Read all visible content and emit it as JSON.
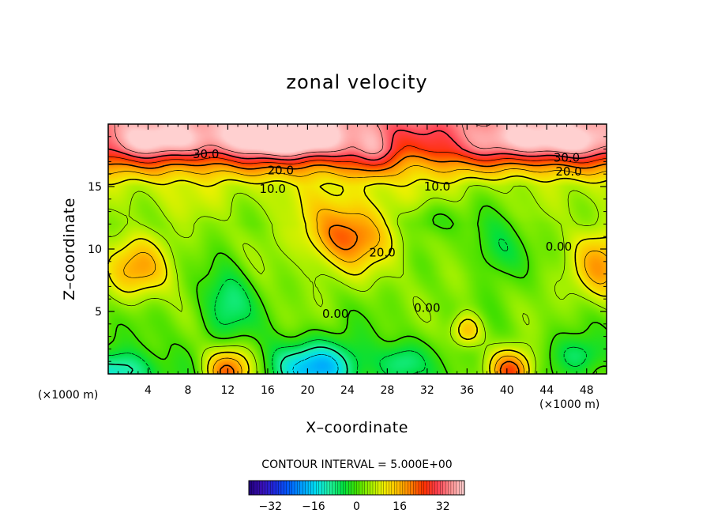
{
  "chart_data": {
    "type": "heatmap",
    "title": "zonal velocity",
    "xlabel": "X–coordinate",
    "ylabel": "Z–coordinate",
    "x_unit": "(×1000 m)",
    "y_unit": "(×1000 m)",
    "xlim": [
      0,
      50
    ],
    "ylim": [
      0,
      20
    ],
    "x_ticks": [
      "4",
      "8",
      "12",
      "16",
      "20",
      "24",
      "28",
      "32",
      "36",
      "40",
      "44",
      "48"
    ],
    "y_ticks": [
      "5",
      "10",
      "15"
    ],
    "contour_interval_text": "CONTOUR INTERVAL = 5.000E+00",
    "contour_interval": 5,
    "colorbar": {
      "range": [
        -40,
        40
      ],
      "ticks": [
        "−32",
        "−16",
        "0",
        "16",
        "32"
      ]
    },
    "contour_labels": [
      {
        "text": "30.0",
        "x": 9.8,
        "y": 17.6
      },
      {
        "text": "30.0",
        "x": 46.0,
        "y": 17.3
      },
      {
        "text": "20.0",
        "x": 17.3,
        "y": 16.3
      },
      {
        "text": "20.0",
        "x": 46.2,
        "y": 16.2
      },
      {
        "text": "10.0",
        "x": 16.5,
        "y": 14.8
      },
      {
        "text": "10.0",
        "x": 33.0,
        "y": 15.0
      },
      {
        "text": "20.0",
        "x": 27.5,
        "y": 9.7
      },
      {
        "text": "0.00",
        "x": 22.8,
        "y": 4.8
      },
      {
        "text": "0.00",
        "x": 32.0,
        "y": 5.3
      },
      {
        "text": "0.00",
        "x": 45.2,
        "y": 10.2
      }
    ],
    "features": [
      {
        "x": 18.5,
        "y": 18.8,
        "amp": 22,
        "sx": 5.5,
        "sy": 1.8
      },
      {
        "x": 6.0,
        "y": 18.6,
        "amp": 14,
        "sx": 6.0,
        "sy": 1.6
      },
      {
        "x": 44.0,
        "y": 18.6,
        "amp": 16,
        "sx": 7.0,
        "sy": 1.6
      },
      {
        "x": 24.0,
        "y": 11.2,
        "amp": 18,
        "sx": 4.2,
        "sy": 2.6
      },
      {
        "x": 3.0,
        "y": 8.4,
        "amp": 12,
        "sx": 3.2,
        "sy": 2.4
      },
      {
        "x": 49.5,
        "y": 8.6,
        "amp": 12,
        "sx": 2.8,
        "sy": 3.0
      },
      {
        "x": 12.0,
        "y": 6.0,
        "amp": -11,
        "sx": 2.6,
        "sy": 3.2
      },
      {
        "x": 39.0,
        "y": 10.0,
        "amp": -9,
        "sx": 2.8,
        "sy": 2.6
      },
      {
        "x": 21.0,
        "y": 0.6,
        "amp": -18,
        "sx": 4.5,
        "sy": 2.0
      },
      {
        "x": 1.0,
        "y": 0.2,
        "amp": -14,
        "sx": 3.5,
        "sy": 1.6
      },
      {
        "x": 12.0,
        "y": 0.2,
        "amp": 22,
        "sx": 2.4,
        "sy": 2.0
      },
      {
        "x": 40.5,
        "y": 0.2,
        "amp": 24,
        "sx": 2.2,
        "sy": 1.8
      },
      {
        "x": 36.0,
        "y": 3.5,
        "amp": 14,
        "sx": 1.5,
        "sy": 1.3
      },
      {
        "x": 29.5,
        "y": 1.0,
        "amp": -8,
        "sx": 2.2,
        "sy": 1.5
      },
      {
        "x": 47.5,
        "y": 1.5,
        "amp": -8,
        "sx": 2.5,
        "sy": 1.5
      },
      {
        "x": 26.5,
        "y": 17.5,
        "amp": 8,
        "sx": 1.8,
        "sy": 1.8
      },
      {
        "x": 32.0,
        "y": 12.5,
        "amp": -6,
        "sx": 3.0,
        "sy": 1.5
      },
      {
        "x": 41.0,
        "y": 14.5,
        "amp": -3,
        "sx": 5.0,
        "sy": 2.0
      }
    ],
    "base_profile": [
      {
        "z": 0,
        "u": 0
      },
      {
        "z": 4,
        "u": 2
      },
      {
        "z": 8,
        "u": 4
      },
      {
        "z": 12,
        "u": 4
      },
      {
        "z": 15,
        "u": 8
      },
      {
        "z": 16.5,
        "u": 16
      },
      {
        "z": 18,
        "u": 26
      },
      {
        "z": 20,
        "u": 32
      }
    ],
    "colors": [
      "#20007a",
      "#3a10b8",
      "#1a2ce0",
      "#0060ff",
      "#00a0ff",
      "#00e0f0",
      "#20f0a0",
      "#00e040",
      "#40e000",
      "#a0f000",
      "#f0f000",
      "#ffc000",
      "#ff8000",
      "#ff3000",
      "#ff4050",
      "#ff9090",
      "#ffd0d0"
    ]
  }
}
